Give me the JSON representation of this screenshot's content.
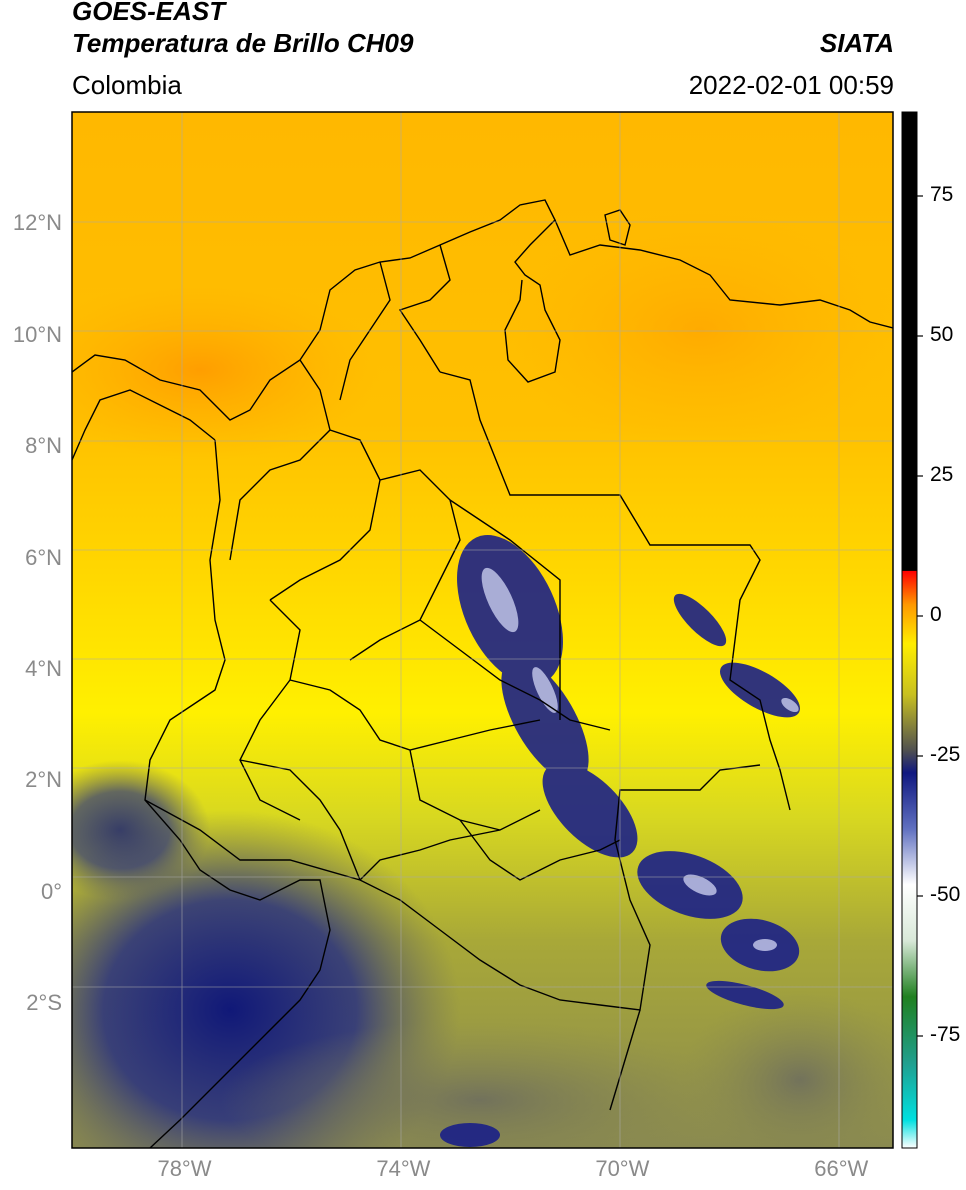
{
  "header": {
    "satellite": "GOES-EAST",
    "product": "Temperatura de Brillo CH09",
    "brand": "SIATA",
    "region": "Colombia",
    "datetime": "2022-02-01 00:59"
  },
  "axes": {
    "lat_ticks": [
      {
        "value": 12,
        "label": "12°N"
      },
      {
        "value": 10,
        "label": "10°N"
      },
      {
        "value": 8,
        "label": "8°N"
      },
      {
        "value": 6,
        "label": "6°N"
      },
      {
        "value": 4,
        "label": "4°N"
      },
      {
        "value": 2,
        "label": "2°N"
      },
      {
        "value": 0,
        "label": "0°"
      },
      {
        "value": -2,
        "label": "2°S"
      }
    ],
    "lon_ticks": [
      {
        "value": -78,
        "label": "78°W"
      },
      {
        "value": -74,
        "label": "74°W"
      },
      {
        "value": -70,
        "label": "70°W"
      },
      {
        "value": -66,
        "label": "66°W"
      }
    ],
    "lon_range": [
      -80,
      -65
    ],
    "lat_range": [
      -4.6,
      14
    ]
  },
  "colorbar": {
    "range": [
      -95,
      90
    ],
    "ticks": [
      {
        "value": 75,
        "label": "75"
      },
      {
        "value": 50,
        "label": "50"
      },
      {
        "value": 25,
        "label": "25"
      },
      {
        "value": 0,
        "label": "0"
      },
      {
        "value": -25,
        "label": "-25"
      },
      {
        "value": -50,
        "label": "-50"
      },
      {
        "value": -75,
        "label": "-75"
      }
    ],
    "stops": [
      {
        "value": -95,
        "color": "#ffffff"
      },
      {
        "value": -90,
        "color": "#00e0e0"
      },
      {
        "value": -80,
        "color": "#20a090"
      },
      {
        "value": -68,
        "color": "#208020"
      },
      {
        "value": -58,
        "color": "#d8e8d8"
      },
      {
        "value": -48,
        "color": "#ffffff"
      },
      {
        "value": -38,
        "color": "#6070c0"
      },
      {
        "value": -28,
        "color": "#101880"
      },
      {
        "value": -24,
        "color": "#505050"
      },
      {
        "value": -14,
        "color": "#c8c020"
      },
      {
        "value": -5,
        "color": "#ffee00"
      },
      {
        "value": 2,
        "color": "#ff9900"
      },
      {
        "value": 8,
        "color": "#ff0000"
      },
      {
        "value": 8.1,
        "color": "#000000"
      },
      {
        "value": 90,
        "color": "#000000"
      }
    ]
  }
}
